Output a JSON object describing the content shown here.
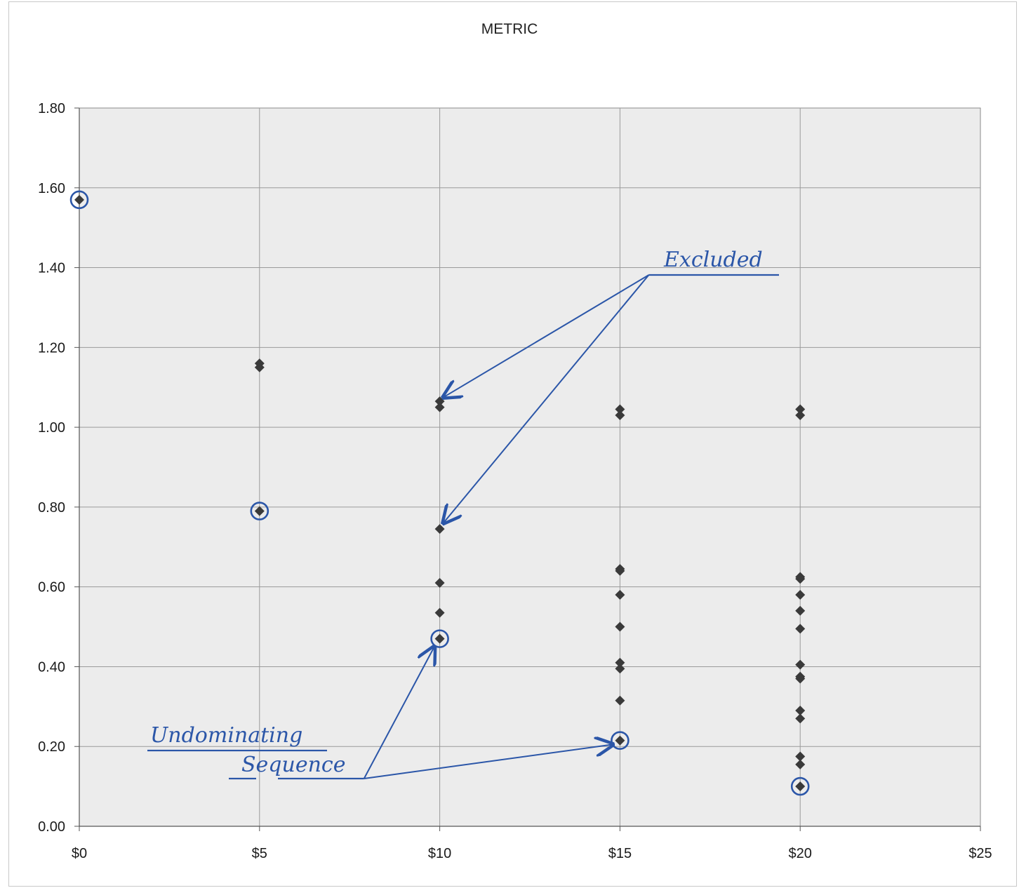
{
  "chart_data": {
    "type": "scatter",
    "title": "METRIC",
    "xlabel": "",
    "ylabel": "",
    "xlim": [
      0,
      25
    ],
    "ylim": [
      0,
      1.8
    ],
    "x_ticks": [
      "$0",
      "$5",
      "$10",
      "$15",
      "$20",
      "$25"
    ],
    "y_ticks": [
      "0.00",
      "0.20",
      "0.40",
      "0.60",
      "0.80",
      "1.00",
      "1.20",
      "1.40",
      "1.60",
      "1.80"
    ],
    "grid": true,
    "plot_background": "#ececec",
    "marker_color": "#3a3a3a",
    "series": [
      {
        "points": [
          {
            "x": 0,
            "y": 1.57
          },
          {
            "x": 5,
            "y": 1.16
          },
          {
            "x": 5,
            "y": 1.15
          },
          {
            "x": 5,
            "y": 0.79
          },
          {
            "x": 10,
            "y": 1.065
          },
          {
            "x": 10,
            "y": 1.05
          },
          {
            "x": 10,
            "y": 0.745
          },
          {
            "x": 10,
            "y": 0.61
          },
          {
            "x": 10,
            "y": 0.535
          },
          {
            "x": 10,
            "y": 0.47
          },
          {
            "x": 15,
            "y": 1.045
          },
          {
            "x": 15,
            "y": 1.03
          },
          {
            "x": 15,
            "y": 0.645
          },
          {
            "x": 15,
            "y": 0.64
          },
          {
            "x": 15,
            "y": 0.58
          },
          {
            "x": 15,
            "y": 0.5
          },
          {
            "x": 15,
            "y": 0.41
          },
          {
            "x": 15,
            "y": 0.395
          },
          {
            "x": 15,
            "y": 0.315
          },
          {
            "x": 15,
            "y": 0.215
          },
          {
            "x": 20,
            "y": 1.045
          },
          {
            "x": 20,
            "y": 1.03
          },
          {
            "x": 20,
            "y": 0.625
          },
          {
            "x": 20,
            "y": 0.62
          },
          {
            "x": 20,
            "y": 0.58
          },
          {
            "x": 20,
            "y": 0.54
          },
          {
            "x": 20,
            "y": 0.495
          },
          {
            "x": 20,
            "y": 0.405
          },
          {
            "x": 20,
            "y": 0.375
          },
          {
            "x": 20,
            "y": 0.37
          },
          {
            "x": 20,
            "y": 0.29
          },
          {
            "x": 20,
            "y": 0.27
          },
          {
            "x": 20,
            "y": 0.175
          },
          {
            "x": 20,
            "y": 0.155
          },
          {
            "x": 20,
            "y": 0.1
          }
        ]
      }
    ],
    "circled_points": [
      {
        "x": 0,
        "y": 1.57
      },
      {
        "x": 5,
        "y": 0.79
      },
      {
        "x": 10,
        "y": 0.47
      },
      {
        "x": 15,
        "y": 0.215
      },
      {
        "x": 20,
        "y": 0.1
      }
    ],
    "annotations": [
      {
        "text": "Excluded",
        "color": "#2b56a8",
        "anchor": {
          "x": 15.8,
          "y": 1.38
        },
        "targets": [
          {
            "x": 10.1,
            "y": 1.075
          },
          {
            "x": 10.1,
            "y": 0.76
          }
        ]
      },
      {
        "text": "Undominating",
        "color": "#2b56a8"
      },
      {
        "text": "Sequence",
        "color": "#2b56a8",
        "anchor": {
          "x": 7.9,
          "y": 0.12
        },
        "targets": [
          {
            "x": 9.85,
            "y": 0.45
          },
          {
            "x": 14.8,
            "y": 0.205
          }
        ]
      }
    ]
  }
}
